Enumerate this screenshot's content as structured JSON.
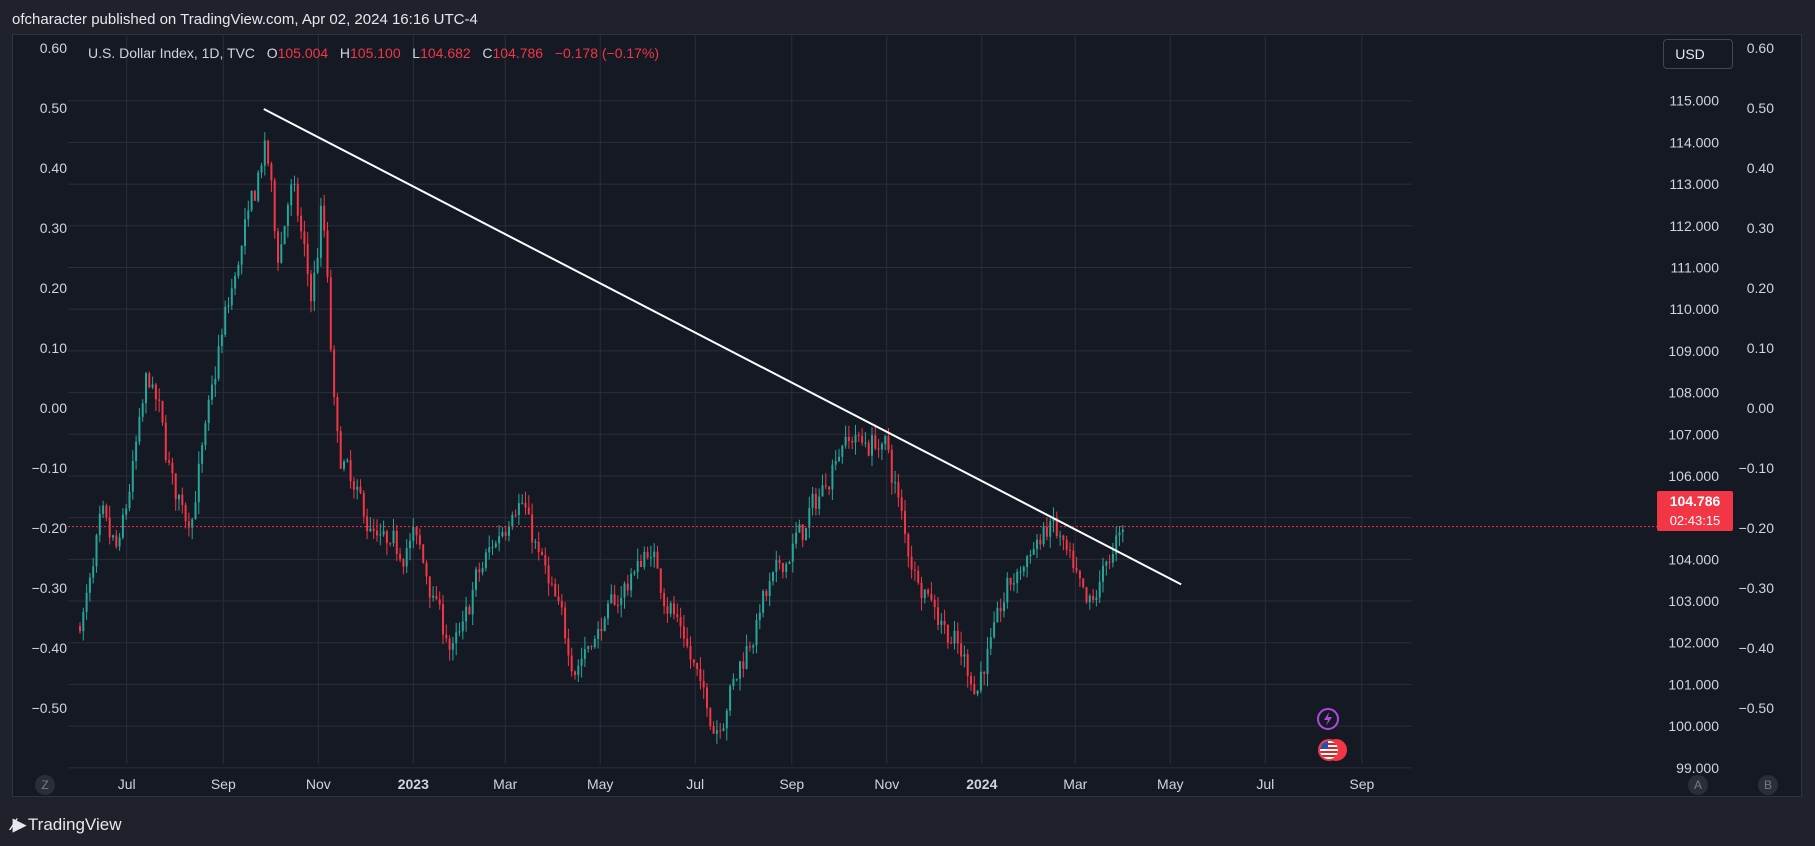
{
  "header": {
    "publisher_line": "ofcharacter published on TradingView.com, Apr 02, 2024 16:16 UTC-4"
  },
  "legend": {
    "symbol": "U.S. Dollar Index, 1D, TVC",
    "o_label": "O",
    "o_value": "105.004",
    "h_label": "H",
    "h_value": "105.100",
    "l_label": "L",
    "l_value": "104.682",
    "c_label": "C",
    "c_value": "104.786",
    "change": "−0.178 (−0.17%)"
  },
  "currency_button": "USD",
  "last_price": {
    "price": "104.786",
    "countdown": "02:43:15",
    "color": "#f23645"
  },
  "corner_buttons": {
    "left": "Z",
    "right_a": "A",
    "right_b": "B"
  },
  "footer": {
    "brand": "TradingView"
  },
  "colors": {
    "up": "#26a69a",
    "down": "#f23645",
    "trendline": "#ffffff",
    "background": "#151924",
    "grid": "#2a2e39"
  },
  "chart_data": {
    "type": "candlestick",
    "series_name": "U.S. Dollar Index, 1D, TVC",
    "price_axis_right": [
      "115.000",
      "114.000",
      "113.000",
      "112.000",
      "111.000",
      "110.000",
      "109.000",
      "108.000",
      "107.000",
      "106.000",
      "105.000",
      "104.000",
      "103.000",
      "102.000",
      "101.000",
      "100.000",
      "99.000"
    ],
    "secondary_axis_labels": [
      "0.60",
      "0.50",
      "0.40",
      "0.30",
      "0.20",
      "0.10",
      "0.00",
      "−0.10",
      "−0.20",
      "−0.30",
      "−0.40",
      "−0.50"
    ],
    "x_tick_labels": [
      "Jul",
      "Sep",
      "Nov",
      "2023",
      "Mar",
      "May",
      "Jul",
      "Sep",
      "Nov",
      "2024",
      "Mar",
      "May",
      "Jul",
      "Sep"
    ],
    "x_tick_bold": [
      "2023",
      "2024"
    ],
    "y_range": [
      98.3,
      116.6
    ],
    "grid": true,
    "price_points": [
      {
        "date": "2022-06-01",
        "price": 102.4
      },
      {
        "date": "2022-06-14",
        "price": 105.0
      },
      {
        "date": "2022-06-24",
        "price": 104.0
      },
      {
        "date": "2022-07-14",
        "price": 108.6
      },
      {
        "date": "2022-08-01",
        "price": 105.4
      },
      {
        "date": "2022-08-10",
        "price": 104.9
      },
      {
        "date": "2022-08-29",
        "price": 109.3
      },
      {
        "date": "2022-09-07",
        "price": 110.8
      },
      {
        "date": "2022-09-28",
        "price": 114.1
      },
      {
        "date": "2022-10-05",
        "price": 110.8
      },
      {
        "date": "2022-10-13",
        "price": 113.3
      },
      {
        "date": "2022-10-27",
        "price": 110.0
      },
      {
        "date": "2022-11-03",
        "price": 112.9
      },
      {
        "date": "2022-11-11",
        "price": 106.6
      },
      {
        "date": "2022-12-05",
        "price": 104.6
      },
      {
        "date": "2022-12-15",
        "price": 104.2
      },
      {
        "date": "2023-01-02",
        "price": 104.5
      },
      {
        "date": "2023-01-26",
        "price": 101.6
      },
      {
        "date": "2023-02-08",
        "price": 103.4
      },
      {
        "date": "2023-03-08",
        "price": 105.6
      },
      {
        "date": "2023-04-14",
        "price": 101.4
      },
      {
        "date": "2023-05-31",
        "price": 104.3
      },
      {
        "date": "2023-07-13",
        "price": 99.9
      },
      {
        "date": "2023-08-11",
        "price": 102.9
      },
      {
        "date": "2023-09-15",
        "price": 105.3
      },
      {
        "date": "2023-10-03",
        "price": 107.0
      },
      {
        "date": "2023-10-31",
        "price": 106.7
      },
      {
        "date": "2023-11-14",
        "price": 104.1
      },
      {
        "date": "2023-12-27",
        "price": 100.9
      },
      {
        "date": "2024-01-17",
        "price": 103.4
      },
      {
        "date": "2024-02-14",
        "price": 104.9
      },
      {
        "date": "2024-03-08",
        "price": 102.6
      },
      {
        "date": "2024-03-20",
        "price": 104.0
      },
      {
        "date": "2024-04-02",
        "price": 104.786
      }
    ],
    "trendline": {
      "from": {
        "date": "2022-09-27",
        "price": 114.8
      },
      "to": {
        "date": "2024-05-08",
        "price": 103.4
      }
    },
    "last_price_line": 104.786
  }
}
